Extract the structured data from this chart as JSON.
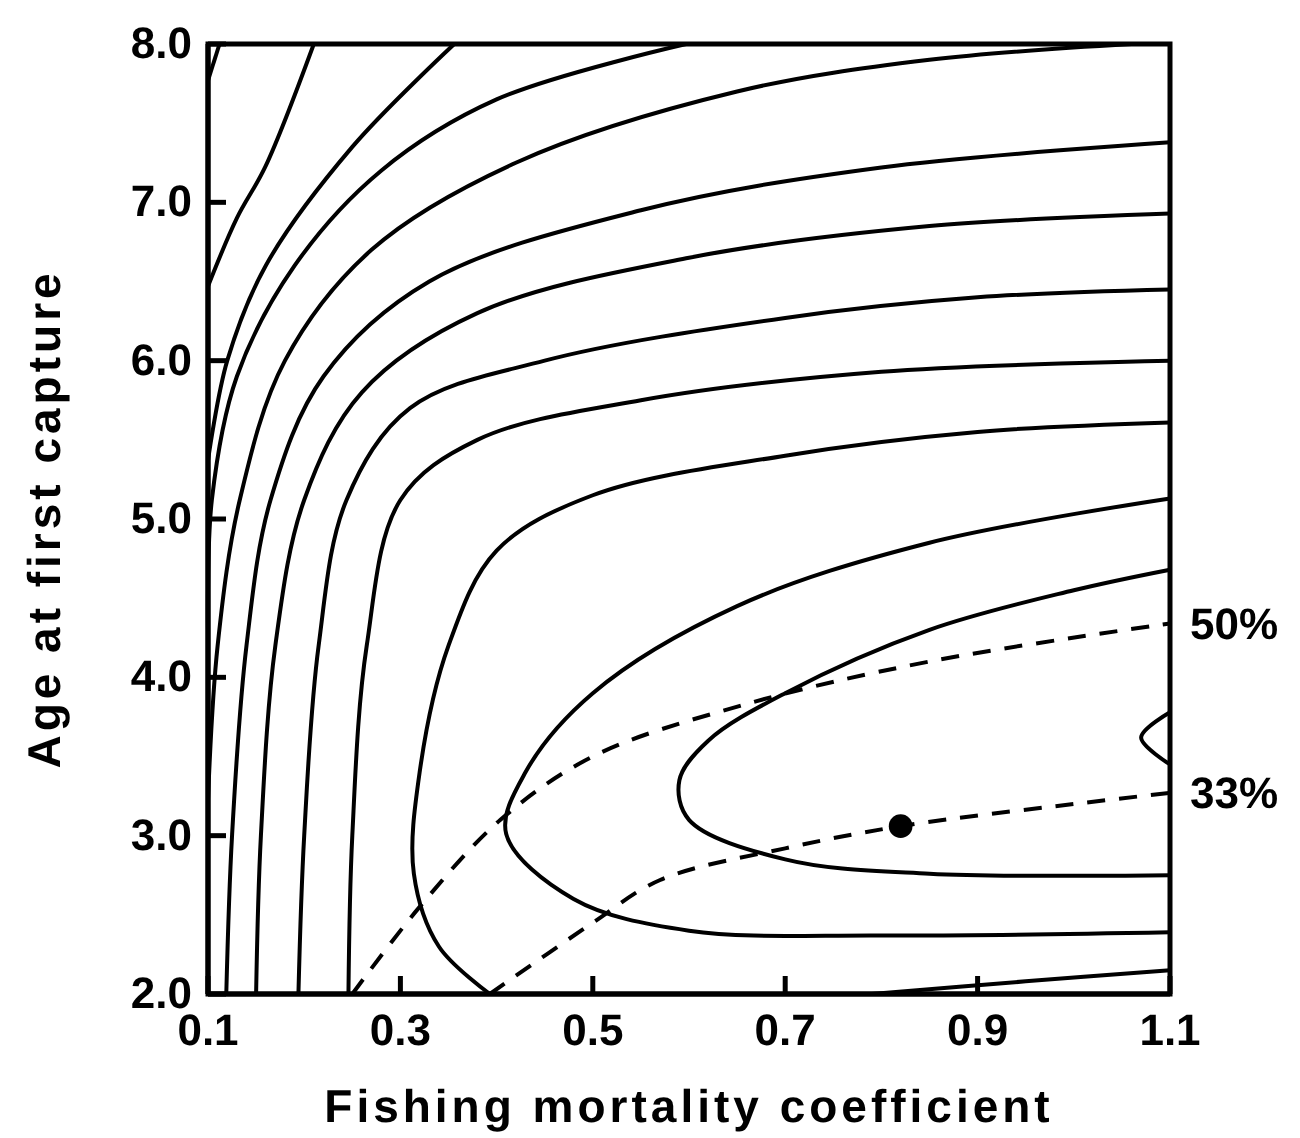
{
  "chart_data": {
    "type": "line",
    "xlabel": "Fishing mortality coefficient",
    "ylabel": "Age at first capture",
    "xlim": [
      0.1,
      1.1
    ],
    "ylim": [
      2,
      8
    ],
    "xticks": [
      0.1,
      0.3,
      0.5,
      0.7,
      0.9,
      1.1
    ],
    "yticks": [
      {
        "value": 2,
        "label": "2.0"
      },
      {
        "value": 3,
        "label": "3.0"
      },
      {
        "value": 4,
        "label": "4.0"
      },
      {
        "value": 5,
        "label": "5.0"
      },
      {
        "value": 6,
        "label": "6.0"
      },
      {
        "value": 7,
        "label": "7.0"
      },
      {
        "value": 8,
        "label": "8.0"
      }
    ],
    "grid": false,
    "marker": "none",
    "line_style": "solid",
    "annotations": [
      {
        "text": "50%",
        "x": 1.1,
        "y": 4.34
      },
      {
        "text": "33%",
        "x": 1.1,
        "y": 3.27
      }
    ],
    "series": [
      {
        "color": "#000000",
        "x": [
          0.1,
          0.112
        ],
        "values": [
          7.77,
          8.0
        ]
      },
      {
        "color": "#000000",
        "x": [
          0.1,
          0.13,
          0.16,
          0.21
        ],
        "values": [
          6.47,
          6.9,
          7.23,
          8.0
        ]
      },
      {
        "color": "#000000",
        "x": [
          0.1,
          0.12,
          0.16,
          0.25,
          0.356
        ],
        "values": [
          5.37,
          6.0,
          6.6,
          7.35,
          8.0
        ]
      },
      {
        "color": "#000000",
        "x": [
          0.1,
          0.104,
          0.13,
          0.19,
          0.28,
          0.4,
          0.597
        ],
        "values": [
          4.3,
          5.12,
          5.9,
          6.6,
          7.2,
          7.65,
          8.0
        ]
      },
      {
        "color": "#000000",
        "x": [
          0.1,
          0.11,
          0.133,
          0.18,
          0.27,
          0.42,
          0.65,
          0.85,
          1.06
        ],
        "values": [
          3.23,
          4.2,
          5.12,
          6.0,
          6.7,
          7.25,
          7.7,
          7.9,
          8.0
        ]
      },
      {
        "color": "#000000",
        "x": [
          0.119,
          0.125,
          0.14,
          0.165,
          0.22,
          0.33,
          0.55,
          0.8,
          1.1
        ],
        "values": [
          2.0,
          3.0,
          4.2,
          5.12,
          5.9,
          6.5,
          6.95,
          7.22,
          7.38
        ]
      },
      {
        "color": "#000000",
        "x": [
          0.15,
          0.155,
          0.17,
          0.2,
          0.26,
          0.38,
          0.6,
          0.85,
          1.1
        ],
        "values": [
          2.0,
          3.0,
          4.2,
          5.12,
          5.8,
          6.3,
          6.65,
          6.85,
          6.93
        ]
      },
      {
        "color": "#000000",
        "x": [
          0.194,
          0.2,
          0.215,
          0.244,
          0.31,
          0.45,
          0.7,
          0.9,
          1.1
        ],
        "values": [
          2.0,
          3.0,
          4.2,
          5.12,
          5.7,
          6.0,
          6.27,
          6.4,
          6.45
        ]
      },
      {
        "color": "#000000",
        "x": [
          0.246,
          0.25,
          0.265,
          0.3,
          0.38,
          0.55,
          0.8,
          1.1
        ],
        "values": [
          2.0,
          3.0,
          4.2,
          5.12,
          5.5,
          5.75,
          5.93,
          6.0
        ]
      },
      {
        "color": "#000000",
        "x": [
          0.393,
          0.34,
          0.314,
          0.32,
          0.35,
          0.4,
          0.5,
          0.7,
          0.9,
          1.1
        ],
        "values": [
          2.0,
          2.3,
          2.76,
          3.4,
          4.2,
          4.8,
          5.15,
          5.4,
          5.55,
          5.61
        ]
      },
      {
        "color": "#000000",
        "x": [
          1.1,
          0.8,
          0.6,
          0.48,
          0.41,
          0.43,
          0.5,
          0.65,
          0.85,
          1.1
        ],
        "values": [
          2.39,
          2.37,
          2.4,
          2.6,
          3.01,
          3.4,
          3.9,
          4.45,
          4.85,
          5.13
        ]
      },
      {
        "color": "#000000",
        "x": [
          1.1,
          0.85,
          0.7,
          0.6,
          0.59,
          0.62,
          0.7,
          0.85,
          1.0,
          1.1
        ],
        "values": [
          2.75,
          2.76,
          2.85,
          3.1,
          3.35,
          3.6,
          3.9,
          4.3,
          4.55,
          4.68
        ]
      },
      {
        "color": "#000000",
        "x": [
          1.1,
          1.07,
          1.1
        ],
        "values": [
          3.78,
          3.62,
          3.45
        ]
      },
      {
        "color": "#000000",
        "x": [
          0.79,
          0.95,
          1.1
        ],
        "values": [
          2.0,
          2.08,
          2.15
        ]
      },
      {
        "color": "#000000",
        "line_style": "dashed",
        "x": [
          0.25,
          0.32,
          0.404,
          0.5,
          0.653,
          0.85,
          1.1
        ],
        "values": [
          2.0,
          2.55,
          3.1,
          3.5,
          3.82,
          4.1,
          4.34
        ]
      },
      {
        "color": "#000000",
        "line_style": "dashed",
        "x": [
          0.393,
          0.5,
          0.57,
          0.7,
          0.82,
          1.0,
          1.1
        ],
        "values": [
          2.0,
          2.45,
          2.72,
          2.92,
          3.06,
          3.2,
          3.27
        ]
      },
      {
        "type": "scatter",
        "marker": "circle",
        "color": "#000000",
        "x": [
          0.82
        ],
        "values": [
          3.06
        ]
      }
    ]
  }
}
